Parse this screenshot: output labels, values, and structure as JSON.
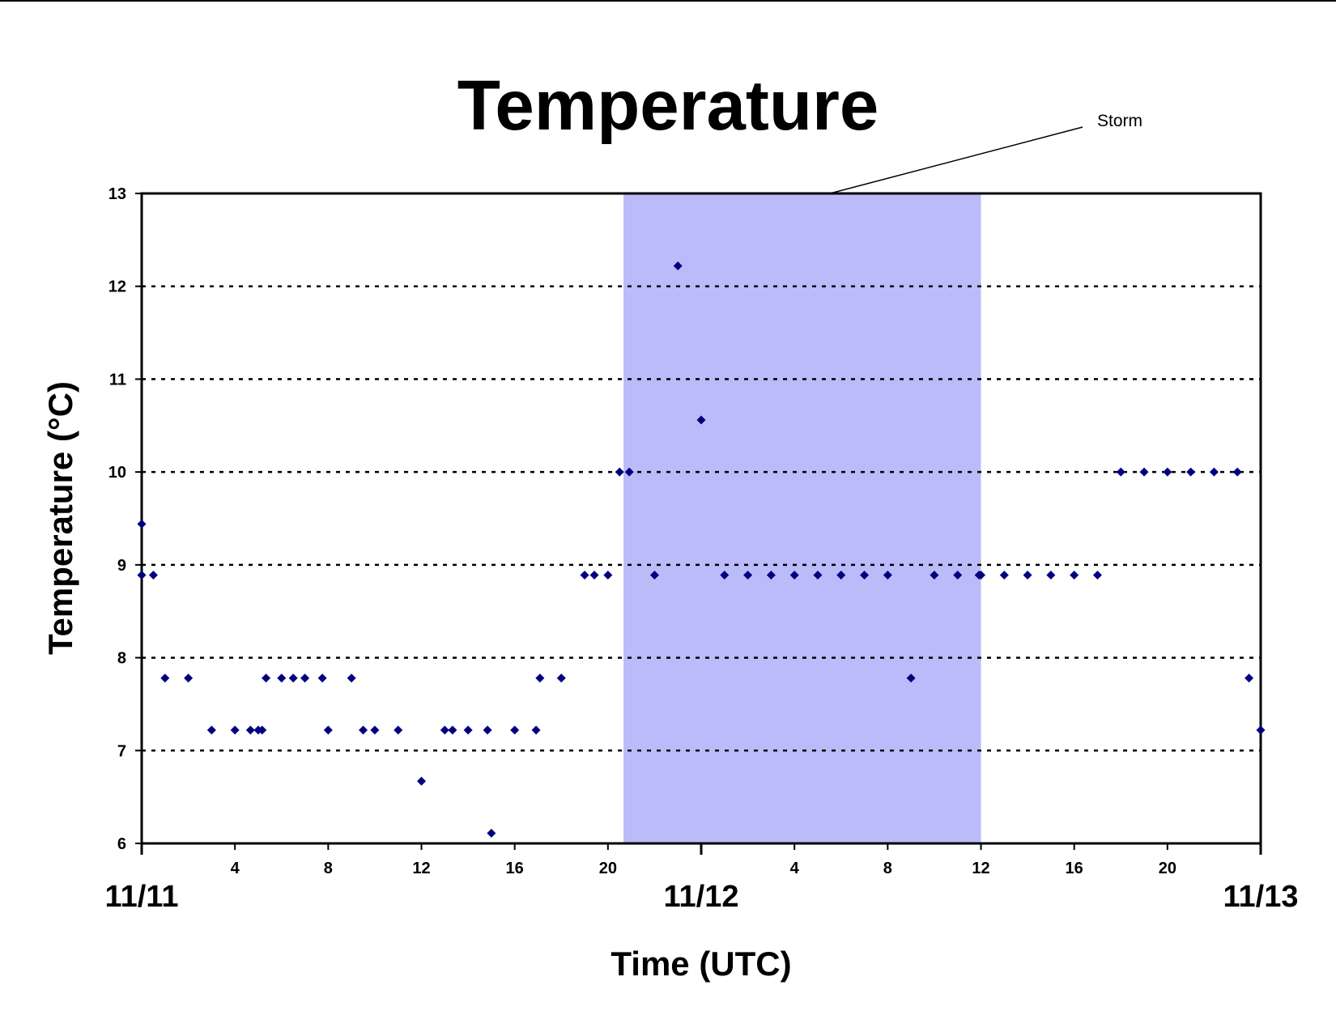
{
  "chart_data": {
    "type": "scatter",
    "title": "Temperature",
    "xlabel": "Time (UTC)",
    "ylabel": "Temperature (°C)",
    "ylim": [
      6,
      13
    ],
    "yticks": [
      "6",
      "7",
      "8",
      "9",
      "10",
      "11",
      "12",
      "13"
    ],
    "xlim": [
      "11/11 00:00",
      "11/13 00:00"
    ],
    "hour_ticks": [
      {
        "day": "11/11",
        "label": "4"
      },
      {
        "day": "11/11",
        "label": "8"
      },
      {
        "day": "11/11",
        "label": "12"
      },
      {
        "day": "11/11",
        "label": "16"
      },
      {
        "day": "11/11",
        "label": "20"
      },
      {
        "day": "11/12",
        "label": "4"
      },
      {
        "day": "11/12",
        "label": "8"
      },
      {
        "day": "11/12",
        "label": "12"
      },
      {
        "day": "11/12",
        "label": "16"
      },
      {
        "day": "11/12",
        "label": "20"
      }
    ],
    "date_labels": [
      "11/11",
      "11/12",
      "11/13"
    ],
    "grid": "horizontal dotted",
    "marker_color": "#00007f",
    "shaded_region": {
      "label": "Storm",
      "start": "11/11 20:40",
      "end": "11/12 12:00",
      "color": "#bbbbfa"
    },
    "points": [
      {
        "x": "11/11 00:00",
        "y": 9.44
      },
      {
        "x": "11/11 00:00",
        "y": 8.89
      },
      {
        "x": "11/11 00:30",
        "y": 8.89
      },
      {
        "x": "11/11 01:00",
        "y": 7.78
      },
      {
        "x": "11/11 02:00",
        "y": 7.78
      },
      {
        "x": "11/11 03:00",
        "y": 7.22
      },
      {
        "x": "11/11 04:00",
        "y": 7.22
      },
      {
        "x": "11/11 04:40",
        "y": 7.22
      },
      {
        "x": "11/11 05:00",
        "y": 7.22
      },
      {
        "x": "11/11 05:10",
        "y": 7.22
      },
      {
        "x": "11/11 05:20",
        "y": 7.78
      },
      {
        "x": "11/11 06:00",
        "y": 7.78
      },
      {
        "x": "11/11 06:30",
        "y": 7.78
      },
      {
        "x": "11/11 07:00",
        "y": 7.78
      },
      {
        "x": "11/11 07:45",
        "y": 7.78
      },
      {
        "x": "11/11 08:00",
        "y": 7.22
      },
      {
        "x": "11/11 09:00",
        "y": 7.78
      },
      {
        "x": "11/11 09:30",
        "y": 7.22
      },
      {
        "x": "11/11 10:00",
        "y": 7.22
      },
      {
        "x": "11/11 11:00",
        "y": 7.22
      },
      {
        "x": "11/11 12:00",
        "y": 6.67
      },
      {
        "x": "11/11 13:00",
        "y": 7.22
      },
      {
        "x": "11/11 13:20",
        "y": 7.22
      },
      {
        "x": "11/11 14:00",
        "y": 7.22
      },
      {
        "x": "11/11 14:50",
        "y": 7.22
      },
      {
        "x": "11/11 15:00",
        "y": 6.11
      },
      {
        "x": "11/11 16:00",
        "y": 7.22
      },
      {
        "x": "11/11 16:55",
        "y": 7.22
      },
      {
        "x": "11/11 17:05",
        "y": 7.78
      },
      {
        "x": "11/11 18:00",
        "y": 7.78
      },
      {
        "x": "11/11 19:00",
        "y": 8.89
      },
      {
        "x": "11/11 19:25",
        "y": 8.89
      },
      {
        "x": "11/11 20:00",
        "y": 8.89
      },
      {
        "x": "11/11 20:30",
        "y": 10.0
      },
      {
        "x": "11/11 20:55",
        "y": 10.0
      },
      {
        "x": "11/11 22:00",
        "y": 8.89
      },
      {
        "x": "11/11 23:00",
        "y": 12.22
      },
      {
        "x": "11/12 00:00",
        "y": 10.56
      },
      {
        "x": "11/12 01:00",
        "y": 8.89
      },
      {
        "x": "11/12 02:00",
        "y": 8.89
      },
      {
        "x": "11/12 03:00",
        "y": 8.89
      },
      {
        "x": "11/12 04:00",
        "y": 8.89
      },
      {
        "x": "11/12 05:00",
        "y": 8.89
      },
      {
        "x": "11/12 06:00",
        "y": 8.89
      },
      {
        "x": "11/12 07:00",
        "y": 8.89
      },
      {
        "x": "11/12 08:00",
        "y": 8.89
      },
      {
        "x": "11/12 09:00",
        "y": 7.78
      },
      {
        "x": "11/12 10:00",
        "y": 8.89
      },
      {
        "x": "11/12 11:00",
        "y": 8.89
      },
      {
        "x": "11/12 11:55",
        "y": 8.89
      },
      {
        "x": "11/12 12:00",
        "y": 8.89
      },
      {
        "x": "11/12 13:00",
        "y": 8.89
      },
      {
        "x": "11/12 14:00",
        "y": 8.89
      },
      {
        "x": "11/12 15:00",
        "y": 8.89
      },
      {
        "x": "11/12 16:00",
        "y": 8.89
      },
      {
        "x": "11/12 17:00",
        "y": 8.89
      },
      {
        "x": "11/12 18:00",
        "y": 10.0
      },
      {
        "x": "11/12 19:00",
        "y": 10.0
      },
      {
        "x": "11/12 20:00",
        "y": 10.0
      },
      {
        "x": "11/12 21:00",
        "y": 10.0
      },
      {
        "x": "11/12 22:00",
        "y": 10.0
      },
      {
        "x": "11/12 23:00",
        "y": 10.0
      },
      {
        "x": "11/12 23:30",
        "y": 7.78
      },
      {
        "x": "11/13 00:00",
        "y": 7.22
      }
    ]
  }
}
